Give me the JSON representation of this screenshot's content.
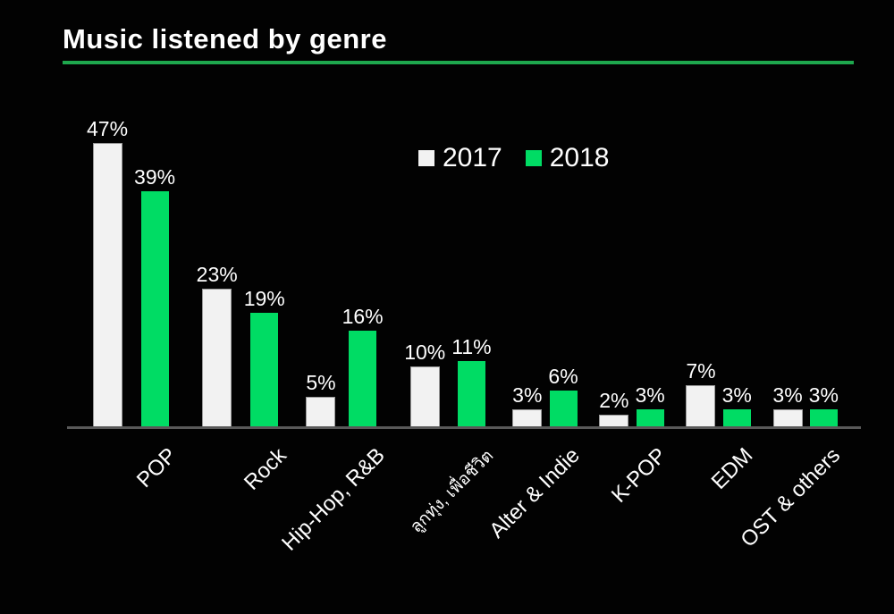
{
  "title": "Music listened by genre",
  "colors": {
    "background": "#020202",
    "title_text": "#FFFFFF",
    "title_rule_green": "#1EA74D",
    "bar_2017_fill": "#F2F2F2",
    "bar_2017_border": "#9A9A9A",
    "bar_2018_fill": "#00DC64",
    "axis_line": "#595959",
    "label_text": "#FFFFFF"
  },
  "chart_data": {
    "type": "bar",
    "title": "Music listened by genre",
    "categories": [
      "POP",
      "Rock",
      "Hip-Hop, R&B",
      "ลูกทุ่ง, เพื่อชีวิต",
      "Alter & Indie",
      "K-POP",
      "EDM",
      "OST & others"
    ],
    "series": [
      {
        "name": "2017",
        "color": "#F2F2F2",
        "values": [
          47,
          23,
          5,
          10,
          3,
          2,
          7,
          3
        ]
      },
      {
        "name": "2018",
        "color": "#00DC64",
        "values": [
          39,
          19,
          16,
          11,
          6,
          3,
          3,
          3
        ]
      }
    ],
    "unit": "%",
    "value_labels": true,
    "xlabel": "",
    "ylabel": "",
    "ylim": [
      0,
      50
    ],
    "grid": false,
    "legend_position": "top-center",
    "x_tick_rotation_deg": 45,
    "background": "dark"
  }
}
